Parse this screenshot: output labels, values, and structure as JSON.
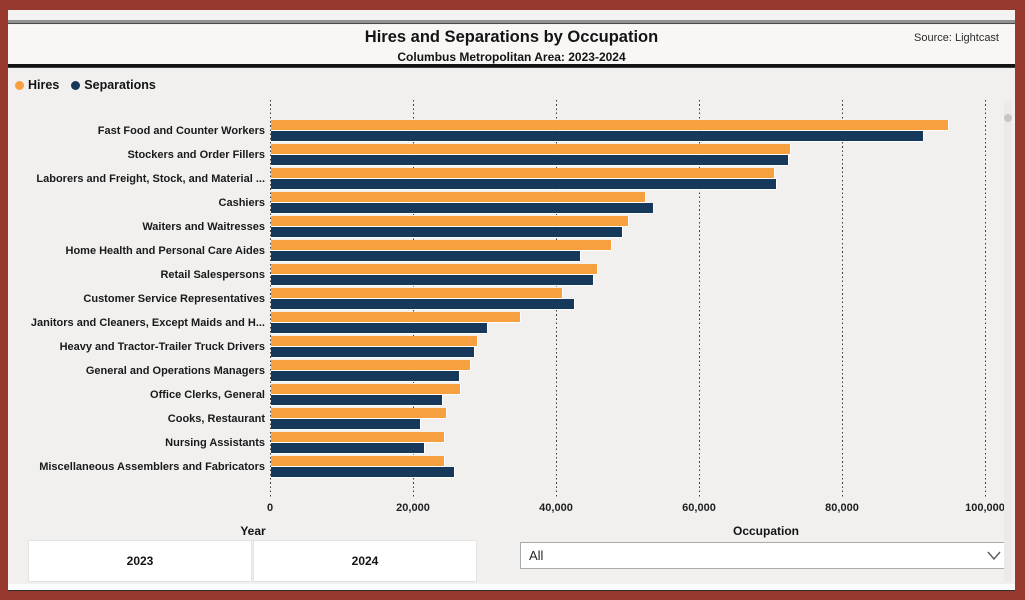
{
  "frame": {
    "border_color": "#97392E"
  },
  "header": {
    "title": "Hires and Separations by Occupation",
    "subtitle": "Columbus Metropolitan Area: 2023-2024",
    "source": "Source: Lightcast"
  },
  "legend": {
    "items": [
      {
        "label": "Hires",
        "color": "#F6A040"
      },
      {
        "label": "Separations",
        "color": "#16395B"
      }
    ]
  },
  "chart_data": {
    "type": "bar",
    "orientation": "horizontal",
    "title": "Hires and Separations by Occupation",
    "subtitle": "Columbus Metropolitan Area: 2023-2024",
    "xlabel": "",
    "ylabel": "",
    "xlim": [
      0,
      100000
    ],
    "x_ticks": [
      "0",
      "20,000",
      "40,000",
      "60,000",
      "80,000",
      "100,000"
    ],
    "grid": "vertical-dotted",
    "legend_position": "top-left",
    "categories": [
      "Fast Food and Counter Workers",
      "Stockers and Order Fillers",
      "Laborers and Freight, Stock, and Material ...",
      "Cashiers",
      "Waiters and Waitresses",
      "Home Health and Personal Care Aides",
      "Retail Salespersons",
      "Customer Service Representatives",
      "Janitors and Cleaners, Except Maids and H...",
      "Heavy and Tractor-Trailer Truck Drivers",
      "General and Operations Managers",
      "Office Clerks, General",
      "Cooks, Restaurant",
      "Nursing Assistants",
      "Miscellaneous Assemblers and Fabricators"
    ],
    "series": [
      {
        "name": "Hires",
        "color": "#F6A040",
        "values": [
          94600,
          72500,
          70300,
          52300,
          49900,
          47500,
          45600,
          40700,
          34800,
          28800,
          27800,
          26400,
          24500,
          24200,
          24100
        ]
      },
      {
        "name": "Separations",
        "color": "#16395B",
        "values": [
          91000,
          72200,
          70600,
          53400,
          49000,
          43100,
          45000,
          42300,
          30200,
          28300,
          26200,
          23900,
          20800,
          21400,
          25500
        ]
      }
    ]
  },
  "filters": {
    "year": {
      "label": "Year",
      "options": [
        "2023",
        "2024"
      ]
    },
    "occupation": {
      "label": "Occupation",
      "value": "All"
    }
  }
}
